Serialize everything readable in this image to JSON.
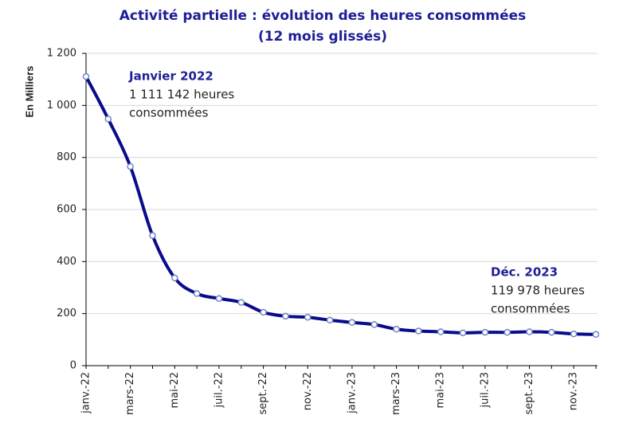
{
  "chart_data": {
    "type": "line",
    "title_lines": [
      "Activité partielle : évolution des heures consommées",
      "(12 mois glissés)"
    ],
    "y_label": "En Milliers",
    "categories": [
      "janv.-22",
      null,
      "mars-22",
      null,
      "mai-22",
      null,
      "juil.-22",
      null,
      "sept.-22",
      null,
      "nov.-22",
      null,
      "janv.-23",
      null,
      "mars-23",
      null,
      "mai-23",
      null,
      "juil.-23",
      null,
      "sept.-23",
      null,
      "nov.-23",
      null
    ],
    "series": [
      {
        "name": "Heures consommées",
        "color": "#0a0a8c",
        "values": [
          1111.142,
          948,
          765,
          500,
          337,
          277,
          258,
          243,
          205,
          190,
          186,
          175,
          166,
          158,
          140,
          133,
          130,
          126,
          128,
          128,
          130,
          128,
          122,
          119.978
        ]
      }
    ],
    "ylim": [
      0,
      1200
    ],
    "yticks": [
      0,
      200,
      400,
      600,
      800,
      {
        "value": 1000,
        "label": "1 000"
      },
      {
        "value": 1200,
        "label": "1 200"
      }
    ],
    "grid": true,
    "annotations": [
      {
        "index": 0,
        "lines": [
          "Janvier 2022",
          "1 111 142 heures",
          "consommées"
        ]
      },
      {
        "index": 23,
        "lines": [
          "Déc. 2023",
          "119 978 heures",
          "consommées"
        ]
      }
    ]
  }
}
